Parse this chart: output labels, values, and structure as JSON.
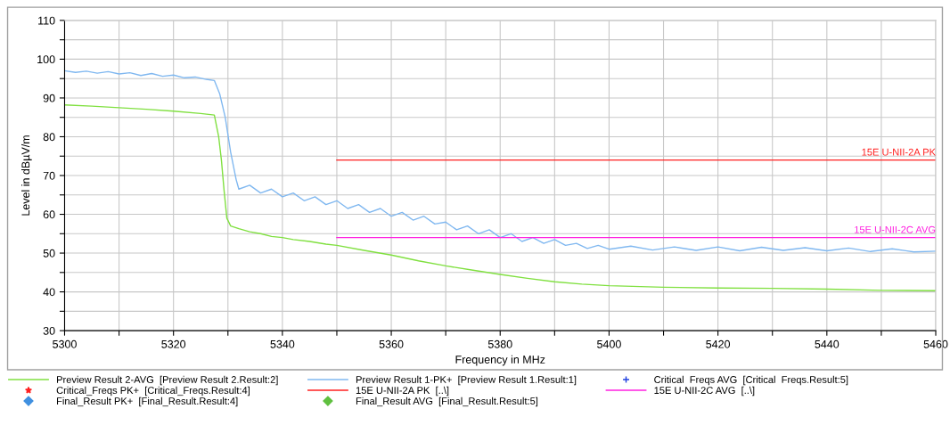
{
  "chart_data": {
    "type": "line",
    "xlabel": "Frequency in MHz",
    "ylabel": "Level in dBµV/m",
    "xlim": [
      5300,
      5460
    ],
    "ylim": [
      30,
      110
    ],
    "xticks": [
      5300,
      {
        "value": 5310,
        "label": null
      },
      5320,
      {
        "value": 5330,
        "label": null
      },
      5340,
      {
        "value": 5350,
        "label": null
      },
      5360,
      {
        "value": 5370,
        "label": null
      },
      5380,
      {
        "value": 5390,
        "label": null
      },
      5400,
      {
        "value": 5410,
        "label": null
      },
      5420,
      {
        "value": 5430,
        "label": null
      },
      5440,
      {
        "value": 5450,
        "label": null
      },
      5460
    ],
    "yticks": [
      30,
      {
        "value": 35,
        "label": null
      },
      40,
      {
        "value": 45,
        "label": null
      },
      50,
      {
        "value": 55,
        "label": null
      },
      60,
      {
        "value": 65,
        "label": null
      },
      70,
      {
        "value": 75,
        "label": null
      },
      80,
      {
        "value": 85,
        "label": null
      },
      90,
      {
        "value": 95,
        "label": null
      },
      100,
      {
        "value": 105,
        "label": null
      },
      110
    ],
    "grid": true,
    "legend": "bottom",
    "marker": "none",
    "line_style": "solid",
    "series": [
      {
        "name": "Preview Result 2-AVG  [Preview Result 2.Result:2]",
        "color": "#80e040",
        "x": [
          5300,
          5305,
          5310,
          5315,
          5320,
          5325,
          5327.5,
          5328.3,
          5328.8,
          5329.3,
          5329.8,
          5330.5,
          5332,
          5334,
          5336,
          5338,
          5340,
          5342,
          5345,
          5348,
          5350,
          5355,
          5360,
          5365,
          5370,
          5375,
          5380,
          5385,
          5390,
          5395,
          5400,
          5410,
          5420,
          5430,
          5440,
          5450,
          5460
        ],
        "values": [
          88.2,
          87.9,
          87.5,
          87.1,
          86.6,
          86,
          85.6,
          80,
          74,
          66,
          59,
          57,
          56.3,
          55.5,
          55,
          54.3,
          54,
          53.5,
          53,
          52.3,
          52,
          50.7,
          49.5,
          48,
          46.7,
          45.6,
          44.5,
          43.5,
          42.6,
          42,
          41.6,
          41.2,
          41,
          40.9,
          40.7,
          40.4,
          40.3
        ]
      },
      {
        "name": "Preview Result 1-PK+  [Preview Result 1.Result:1]",
        "color": "#80b8f0",
        "x": [
          5300,
          5302,
          5304,
          5306,
          5308,
          5310,
          5312,
          5314,
          5316,
          5318,
          5320,
          5322,
          5324,
          5326,
          5327.5,
          5328.5,
          5329.5,
          5330.5,
          5331.5,
          5332,
          5334,
          5336,
          5338,
          5340,
          5342,
          5344,
          5346,
          5348,
          5350,
          5352,
          5354,
          5356,
          5358,
          5360,
          5362,
          5364,
          5366,
          5368,
          5370,
          5372,
          5374,
          5376,
          5378,
          5380,
          5382,
          5384,
          5386,
          5388,
          5390,
          5392,
          5394,
          5396,
          5398,
          5400,
          5404,
          5408,
          5412,
          5416,
          5420,
          5424,
          5428,
          5432,
          5436,
          5440,
          5444,
          5448,
          5452,
          5456,
          5460
        ],
        "values": [
          97,
          96.6,
          96.9,
          96.4,
          96.8,
          96.2,
          96.5,
          95.8,
          96.3,
          95.6,
          95.9,
          95.2,
          95.4,
          94.8,
          94.5,
          91,
          85,
          76,
          69,
          66.5,
          67.5,
          65.5,
          66.5,
          64.5,
          65.5,
          63.5,
          64.5,
          62.5,
          63.5,
          61.5,
          62.5,
          60.5,
          61.5,
          59.5,
          60.5,
          58.5,
          59.5,
          57.5,
          58,
          56,
          57,
          55,
          56,
          54,
          55,
          53,
          54,
          52.5,
          53.5,
          52,
          52.5,
          51.2,
          52,
          51,
          51.8,
          50.8,
          51.6,
          50.7,
          51.6,
          50.6,
          51.5,
          50.7,
          51.4,
          50.6,
          51.3,
          50.4,
          51.1,
          50.3,
          50.5
        ]
      },
      {
        "name": "15E U-NII-2A PK  [..\\]",
        "color": "#ff2020",
        "x": [
          5350,
          5460
        ],
        "values": [
          74,
          74
        ]
      },
      {
        "name": "15E U-NII-2C AVG  [..\\]",
        "color": "#ff20e0",
        "x": [
          5350,
          5460
        ],
        "values": [
          54,
          54
        ]
      }
    ],
    "annotations": [
      {
        "text": "15E U-NII-2A PK",
        "x": 5460,
        "y": 74
      },
      {
        "text": "15E U-NII-2C AVG",
        "x": 5460,
        "y": 54
      },
      "Critical  Freqs AVG  [Critical  Freqs.Result:5]",
      "Critical_Freqs PK+  [Critical_Freqs.Result:4]",
      "Final_Result PK+  [Final_Result.Result:4]",
      "Final_Result AVG  [Final_Result.Result:5]"
    ]
  }
}
